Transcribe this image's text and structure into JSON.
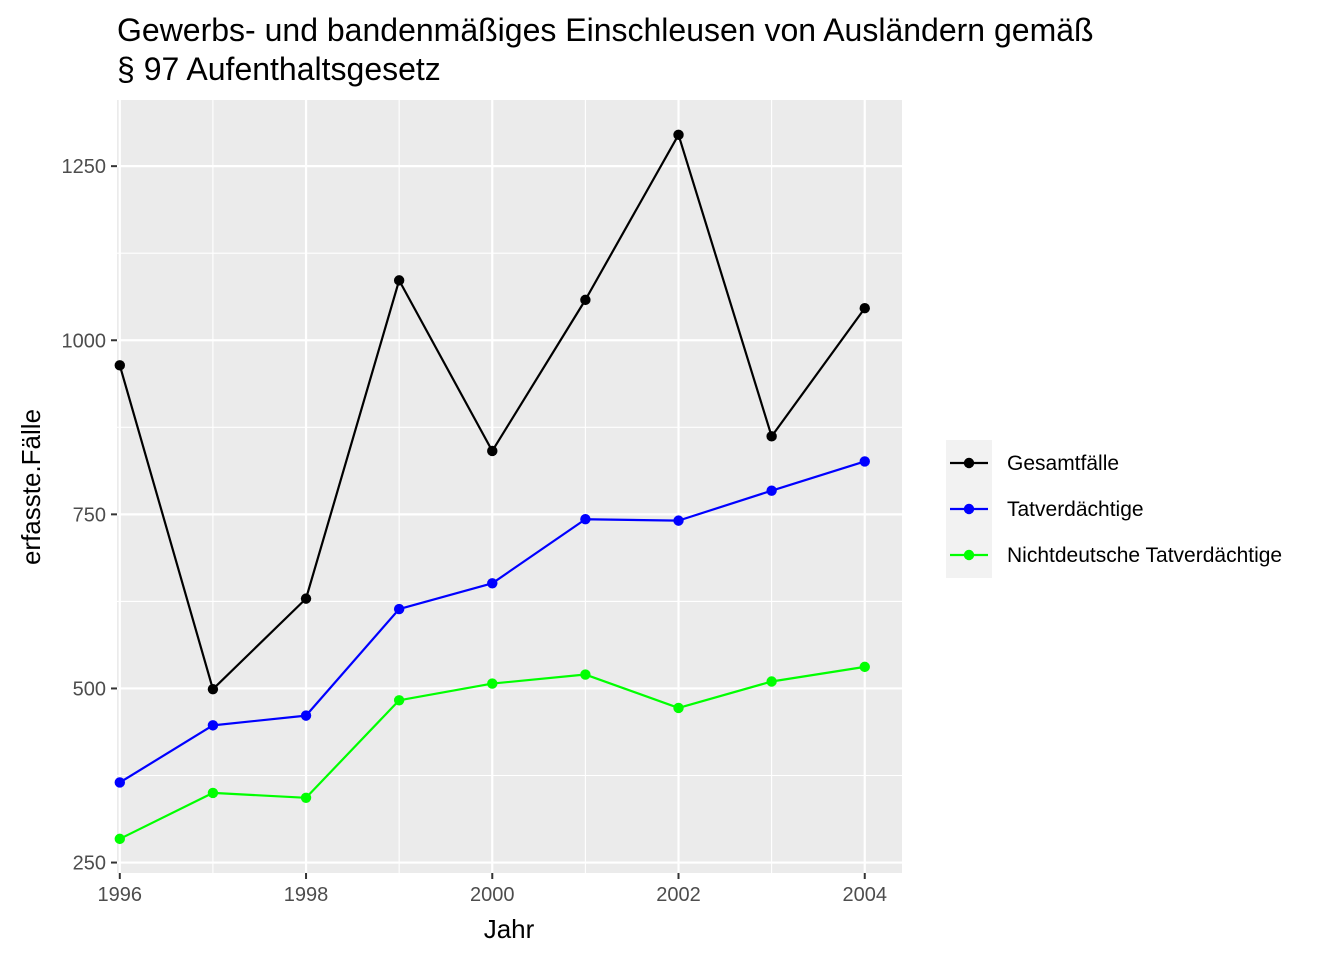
{
  "chart_data": {
    "type": "line",
    "title": "Gewerbs- und bandenmäßiges Einschleusen von Ausländern gemäß\n§ 97 Aufenthaltsgesetz",
    "title_lines": [
      "Gewerbs- und bandenmäßiges Einschleusen von Ausländern gemäß",
      "§ 97 Aufenthaltsgesetz"
    ],
    "xlabel": "Jahr",
    "ylabel": "erfasste.Fälle",
    "x": [
      1996,
      1997,
      1998,
      1999,
      2000,
      2001,
      2002,
      2003,
      2004
    ],
    "xlim": [
      1995.97,
      2004.4
    ],
    "ylim": [
      235,
      1345
    ],
    "x_ticks": [
      1996,
      1998,
      2000,
      2002,
      2004
    ],
    "x_tick_labels": [
      "1996",
      "1998",
      "2000",
      "2002",
      "2004"
    ],
    "y_ticks": [
      250,
      500,
      750,
      1000,
      1250
    ],
    "y_tick_labels": [
      "250",
      "500",
      "750",
      "1000",
      "1250"
    ],
    "grid": true,
    "panel_background": "#ebebeb",
    "grid_color": "#ffffff",
    "legend_position": "right",
    "series": [
      {
        "name": "Gesamtfälle",
        "color": "#000000",
        "values": [
          964,
          499,
          629,
          1086,
          841,
          1058,
          1295,
          862,
          1046
        ]
      },
      {
        "name": "Tatverdächtige",
        "color": "#0000ff",
        "values": [
          365,
          447,
          461,
          614,
          651,
          743,
          741,
          784,
          826
        ]
      },
      {
        "name": "Nichtdeutsche Tatverdächtige",
        "color": "#00ff00",
        "values": [
          284,
          350,
          343,
          483,
          507,
          520,
          472,
          510,
          531
        ]
      }
    ]
  }
}
